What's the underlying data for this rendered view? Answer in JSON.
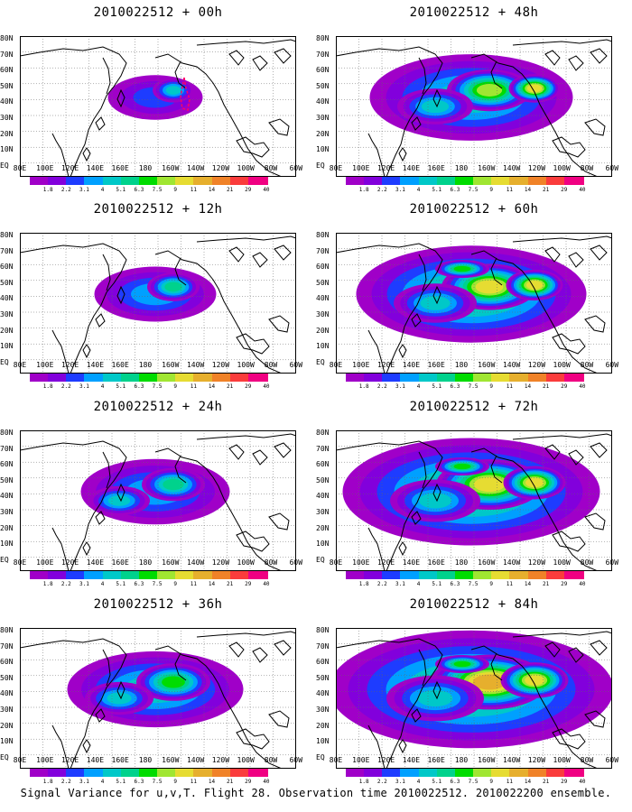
{
  "panels": [
    {
      "title": "2010022512 + 00h",
      "intensity": 0.15
    },
    {
      "title": "2010022512 + 48h",
      "intensity": 0.55
    },
    {
      "title": "2010022512 + 12h",
      "intensity": 0.25
    },
    {
      "title": "2010022512 + 60h",
      "intensity": 0.65
    },
    {
      "title": "2010022512 + 24h",
      "intensity": 0.35
    },
    {
      "title": "2010022512 + 72h",
      "intensity": 0.75
    },
    {
      "title": "2010022512 + 36h",
      "intensity": 0.45
    },
    {
      "title": "2010022512 + 84h",
      "intensity": 0.85
    }
  ],
  "lat_labels": [
    "80N",
    "70N",
    "60N",
    "50N",
    "40N",
    "30N",
    "20N",
    "10N",
    "EQ"
  ],
  "lon_labels": [
    "80E",
    "100E",
    "120E",
    "140E",
    "160E",
    "180",
    "160W",
    "140W",
    "120W",
    "100W",
    "80W",
    "60W"
  ],
  "colorbar": {
    "labels": [
      "1.8",
      "2.2",
      "3.1",
      "4",
      "5.1",
      "6.3",
      "7.5",
      "9",
      "11",
      "14",
      "21",
      "29",
      "40"
    ],
    "colors": [
      "#a000c8",
      "#8200dc",
      "#1e3cff",
      "#00a0ff",
      "#00c8c8",
      "#00d28c",
      "#00dc00",
      "#a0e632",
      "#e6dc32",
      "#e6af2d",
      "#f08228",
      "#fa3c3c",
      "#f00082"
    ]
  },
  "caption": "Signal Variance for u,v,T. Flight 28. Observation time 2010022512. 2010022200 ensemble."
}
